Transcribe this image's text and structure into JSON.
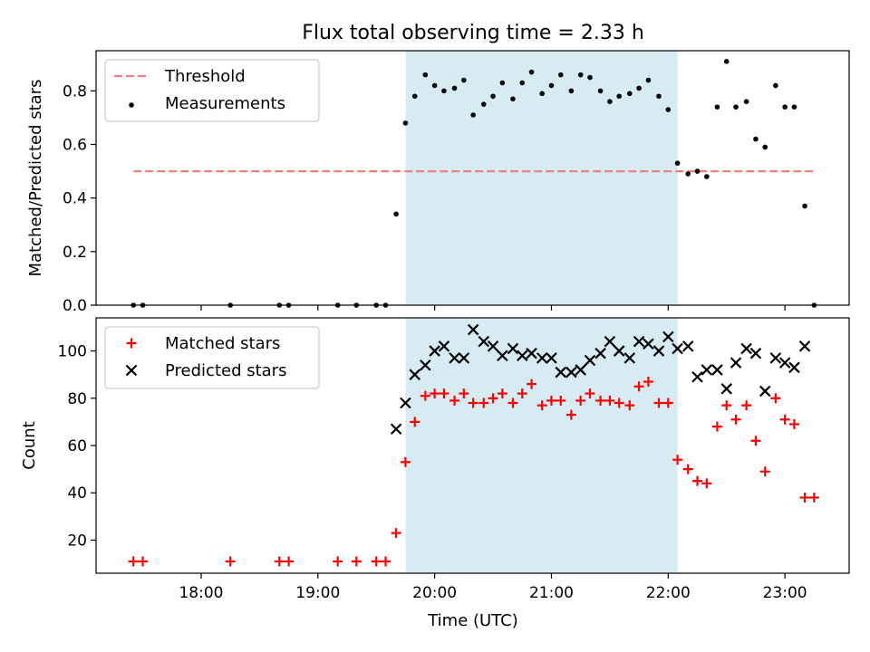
{
  "chart_data": [
    {
      "type": "scatter",
      "title": "Flux total observing time = 2.33 h",
      "ylabel": "Matched/Predicted stars",
      "xlabel": "",
      "ylim": [
        0,
        0.95
      ],
      "xlim": [
        17.1,
        23.55
      ],
      "yticks": [
        0.0,
        0.2,
        0.4,
        0.6,
        0.8
      ],
      "ytick_labels": [
        "0.0",
        "0.2",
        "0.4",
        "0.6",
        "0.8"
      ],
      "xticks": [
        18,
        19,
        20,
        21,
        22,
        23
      ],
      "xtick_labels": [
        "",
        "",
        "",
        "",
        "",
        ""
      ],
      "shaded_span": {
        "x_start": 19.75,
        "x_end": 22.08,
        "color": "#add8e6"
      },
      "legend": {
        "position": "top-left"
      },
      "threshold": {
        "name": "Threshold",
        "y": 0.5,
        "x": [
          17.42,
          23.25
        ],
        "color": "#f08080",
        "style": "dashed"
      },
      "series": [
        {
          "name": "Measurements",
          "color": "#000000",
          "marker": "dot",
          "x": [
            17.42,
            17.5,
            18.25,
            18.67,
            18.75,
            19.17,
            19.33,
            19.5,
            19.58,
            19.67,
            19.75,
            19.83,
            19.92,
            20.0,
            20.08,
            20.17,
            20.25,
            20.33,
            20.42,
            20.5,
            20.58,
            20.67,
            20.75,
            20.83,
            20.92,
            21.0,
            21.08,
            21.17,
            21.25,
            21.33,
            21.42,
            21.5,
            21.58,
            21.67,
            21.75,
            21.83,
            21.92,
            22.0,
            22.08,
            22.17,
            22.25,
            22.33,
            22.42,
            22.5,
            22.58,
            22.67,
            22.75,
            22.83,
            22.92,
            23.0,
            23.08,
            23.17,
            23.25
          ],
          "y": [
            0.0,
            0.0,
            0.0,
            0.0,
            0.0,
            0.0,
            0.0,
            0.0,
            0.0,
            0.34,
            0.68,
            0.78,
            0.86,
            0.82,
            0.8,
            0.81,
            0.84,
            0.71,
            0.75,
            0.78,
            0.83,
            0.77,
            0.83,
            0.87,
            0.79,
            0.82,
            0.86,
            0.8,
            0.86,
            0.85,
            0.8,
            0.76,
            0.78,
            0.79,
            0.81,
            0.84,
            0.78,
            0.73,
            0.53,
            0.49,
            0.5,
            0.48,
            0.74,
            0.91,
            0.74,
            0.76,
            0.62,
            0.59,
            0.82,
            0.74,
            0.74,
            0.37,
            0.0
          ]
        }
      ]
    },
    {
      "type": "scatter",
      "title": "",
      "ylabel": "Count",
      "xlabel": "Time (UTC)",
      "ylim": [
        6,
        114
      ],
      "xlim": [
        17.1,
        23.55
      ],
      "yticks": [
        20,
        40,
        60,
        80,
        100
      ],
      "ytick_labels": [
        "20",
        "40",
        "60",
        "80",
        "100"
      ],
      "xticks": [
        18,
        19,
        20,
        21,
        22,
        23
      ],
      "xtick_labels": [
        "18:00",
        "19:00",
        "20:00",
        "21:00",
        "22:00",
        "23:00"
      ],
      "shaded_span": {
        "x_start": 19.75,
        "x_end": 22.08,
        "color": "#add8e6"
      },
      "legend": {
        "position": "top-left"
      },
      "series": [
        {
          "name": "Matched stars",
          "color": "#ff0000",
          "marker": "plus",
          "x": [
            17.42,
            17.5,
            18.25,
            18.67,
            18.75,
            19.17,
            19.33,
            19.5,
            19.58,
            19.67,
            19.75,
            19.83,
            19.92,
            20.0,
            20.08,
            20.17,
            20.25,
            20.33,
            20.42,
            20.5,
            20.58,
            20.67,
            20.75,
            20.83,
            20.92,
            21.0,
            21.08,
            21.17,
            21.25,
            21.33,
            21.42,
            21.5,
            21.58,
            21.67,
            21.75,
            21.83,
            21.92,
            22.0,
            22.08,
            22.17,
            22.25,
            22.33,
            22.42,
            22.5,
            22.58,
            22.67,
            22.75,
            22.83,
            22.92,
            23.0,
            23.08,
            23.17,
            23.25
          ],
          "y": [
            11,
            11,
            11,
            11,
            11,
            11,
            11,
            11,
            11,
            23,
            53,
            70,
            81,
            82,
            82,
            79,
            82,
            78,
            78,
            80,
            82,
            78,
            82,
            86,
            77,
            79,
            79,
            73,
            79,
            82,
            79,
            79,
            78,
            77,
            85,
            87,
            78,
            78,
            54,
            50,
            45,
            44,
            68,
            77,
            71,
            77,
            62,
            49,
            80,
            71,
            69,
            38,
            38
          ]
        },
        {
          "name": "Predicted stars",
          "color": "#000000",
          "marker": "x",
          "x": [
            19.67,
            19.75,
            19.83,
            19.92,
            20.0,
            20.08,
            20.17,
            20.25,
            20.33,
            20.42,
            20.5,
            20.58,
            20.67,
            20.75,
            20.83,
            20.92,
            21.0,
            21.08,
            21.17,
            21.25,
            21.33,
            21.42,
            21.5,
            21.58,
            21.67,
            21.75,
            21.83,
            21.92,
            22.0,
            22.08,
            22.17,
            22.25,
            22.33,
            22.42,
            22.5,
            22.58,
            22.67,
            22.75,
            22.83,
            22.92,
            23.0,
            23.08,
            23.17
          ],
          "y": [
            67,
            78,
            90,
            94,
            100,
            102,
            97,
            97,
            109,
            104,
            102,
            98,
            101,
            98,
            99,
            97,
            97,
            91,
            91,
            92,
            96,
            99,
            104,
            100,
            97,
            104,
            103,
            100,
            106,
            101,
            102,
            89,
            92,
            92,
            84,
            95,
            101,
            99,
            83,
            97,
            95,
            93,
            102
          ]
        }
      ]
    }
  ]
}
